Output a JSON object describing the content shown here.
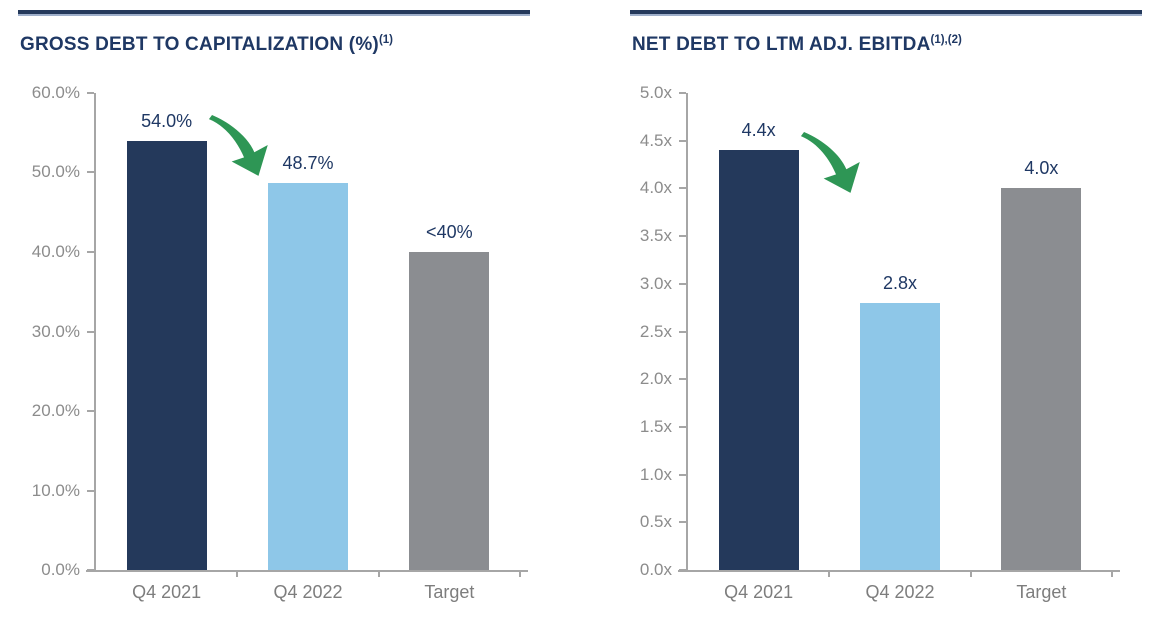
{
  "page": {
    "background": "#FFFFFF",
    "description": "Two side-by-side deleveraging bar charts"
  },
  "colors": {
    "accent_navy": "#1F3864",
    "bar_navy": "#24395B",
    "bar_light_blue": "#8EC7E8",
    "bar_gray": "#8B8D91",
    "arrow_green": "#2E9655",
    "axis_gray": "#A6A6A6",
    "tick_text_gray": "#8C8C8C",
    "category_text_gray": "#7D7D7D",
    "rule_underline": "#9FAFCA"
  },
  "chart_data": [
    {
      "type": "bar",
      "title": "GROSS DEBT TO CAPITALIZATION (%)",
      "title_superscript": "(1)",
      "categories": [
        "Q4 2021",
        "Q4 2022",
        "Target"
      ],
      "values": [
        54.0,
        48.7,
        40.0
      ],
      "value_labels": [
        "54.0%",
        "48.7%",
        "<40%"
      ],
      "series_colors": [
        "#24395B",
        "#8EC7E8",
        "#8B8D91"
      ],
      "ylim": [
        0,
        60
      ],
      "xlabel": "",
      "ylabel": "",
      "grid": false,
      "legend": "none",
      "y_ticks": [
        {
          "value": 60,
          "label": "60.0%"
        },
        {
          "value": 50,
          "label": "50.0%"
        },
        {
          "value": 40,
          "label": "40.0%"
        },
        {
          "value": 30,
          "label": "30.0%"
        },
        {
          "value": 20,
          "label": "20.0%"
        },
        {
          "value": 10,
          "label": "10.0%"
        },
        {
          "value": 0,
          "label": "0.0%"
        }
      ],
      "annotation": {
        "type": "decline-arrow",
        "color": "#2E9655",
        "between": [
          "Q4 2021",
          "Q4 2022"
        ]
      }
    },
    {
      "type": "bar",
      "title": "NET DEBT TO LTM ADJ. EBITDA",
      "title_superscript": "(1),(2)",
      "categories": [
        "Q4 2021",
        "Q4 2022",
        "Target"
      ],
      "values": [
        4.4,
        2.8,
        4.0
      ],
      "value_labels": [
        "4.4x",
        "2.8x",
        "4.0x"
      ],
      "series_colors": [
        "#24395B",
        "#8EC7E8",
        "#8B8D91"
      ],
      "ylim": [
        0,
        5
      ],
      "xlabel": "",
      "ylabel": "",
      "grid": false,
      "legend": "none",
      "y_ticks": [
        {
          "value": 5.0,
          "label": "5.0x"
        },
        {
          "value": 4.5,
          "label": "4.5x"
        },
        {
          "value": 4.0,
          "label": "4.0x"
        },
        {
          "value": 3.5,
          "label": "3.5x"
        },
        {
          "value": 3.0,
          "label": "3.0x"
        },
        {
          "value": 2.5,
          "label": "2.5x"
        },
        {
          "value": 2.0,
          "label": "2.0x"
        },
        {
          "value": 1.5,
          "label": "1.5x"
        },
        {
          "value": 1.0,
          "label": "1.0x"
        },
        {
          "value": 0.5,
          "label": "0.5x"
        },
        {
          "value": 0.0,
          "label": "0.0x"
        }
      ],
      "annotation": {
        "type": "decline-arrow",
        "color": "#2E9655",
        "between": [
          "Q4 2021",
          "Q4 2022"
        ]
      }
    }
  ]
}
